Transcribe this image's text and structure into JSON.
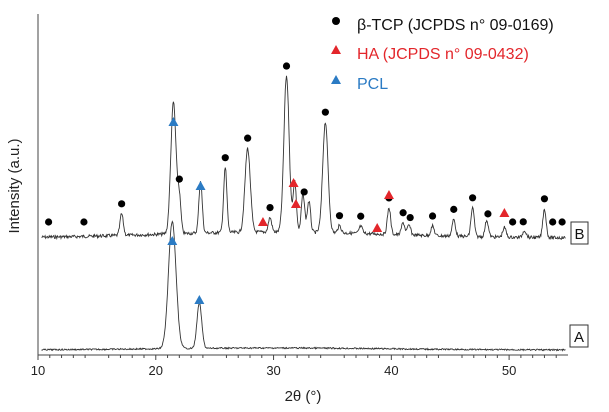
{
  "chart_data": {
    "type": "line",
    "xlabel": "2θ (°)",
    "ylabel": "Intensity (a.u.)",
    "xlim": [
      10,
      55
    ],
    "xticks": [
      "10",
      "20",
      "30",
      "40",
      "50"
    ],
    "grid": false,
    "legend_position": "top-right",
    "legend": [
      {
        "label": "β-TCP (JCPDS n° 09-0169)",
        "marker": "circle",
        "color": "#000000"
      },
      {
        "label": "HA (JCPDS n° 09-0432)",
        "marker": "triangle",
        "color": "#e3262b"
      },
      {
        "label": "PCL",
        "marker": "triangle",
        "color": "#2b7bc4"
      }
    ],
    "series": [
      {
        "name": "B",
        "color": "#333333",
        "peaks": [
          [
            17.1,
            0.09
          ],
          [
            21.5,
            0.55
          ],
          [
            22.0,
            0.14
          ],
          [
            23.8,
            0.22
          ],
          [
            25.9,
            0.27
          ],
          [
            27.8,
            0.35
          ],
          [
            29.7,
            0.06
          ],
          [
            31.1,
            0.65
          ],
          [
            31.8,
            0.21
          ],
          [
            32.5,
            0.16
          ],
          [
            33.0,
            0.13
          ],
          [
            34.4,
            0.46
          ],
          [
            35.6,
            0.03
          ],
          [
            37.4,
            0.03
          ],
          [
            39.8,
            0.11
          ],
          [
            41.0,
            0.05
          ],
          [
            41.5,
            0.04
          ],
          [
            43.5,
            0.04
          ],
          [
            45.3,
            0.07
          ],
          [
            46.9,
            0.12
          ],
          [
            48.1,
            0.07
          ],
          [
            49.6,
            0.04
          ],
          [
            51.3,
            0.03
          ],
          [
            53.0,
            0.12
          ]
        ]
      },
      {
        "name": "A",
        "color": "#333333",
        "peaks": [
          [
            21.4,
            0.53
          ],
          [
            23.7,
            0.19
          ]
        ]
      }
    ],
    "markers": [
      {
        "set": "β-TCP",
        "x": [
          10.9,
          13.9,
          17.1,
          22.0,
          25.9,
          27.8,
          29.7,
          31.1,
          32.6,
          34.4,
          35.6,
          37.4,
          39.8,
          41.0,
          41.6,
          43.5,
          45.3,
          46.9,
          48.2,
          50.3,
          51.2,
          53.0,
          53.7,
          54.5
        ]
      },
      {
        "set": "HA",
        "x": [
          29.1,
          31.7,
          31.9,
          38.8,
          39.8,
          49.6
        ]
      },
      {
        "set": "PCL",
        "x": [
          21.5,
          23.8,
          21.4,
          23.7
        ]
      }
    ]
  }
}
